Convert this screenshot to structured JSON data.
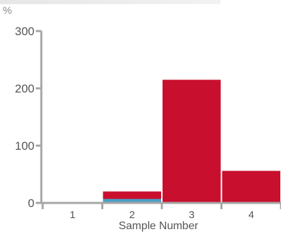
{
  "chart_data": {
    "type": "bar",
    "unit_label": "%",
    "xlabel": "Sample Number",
    "ylabel": "",
    "categories": [
      "1",
      "2",
      "3",
      "4"
    ],
    "yticks": [
      0,
      100,
      200,
      300
    ],
    "ylim": [
      0,
      300
    ],
    "series": [
      {
        "color": "#c8102e",
        "values": [
          0,
          20,
          215,
          56
        ]
      },
      {
        "color": "#4a9fc8",
        "values": [
          0,
          7,
          0,
          0
        ]
      }
    ],
    "grid": false,
    "legend": "none"
  },
  "colors": {
    "axis": "#a6a6a6",
    "bar_primary": "#c8102e",
    "bar_secondary": "#4a9fc8"
  }
}
